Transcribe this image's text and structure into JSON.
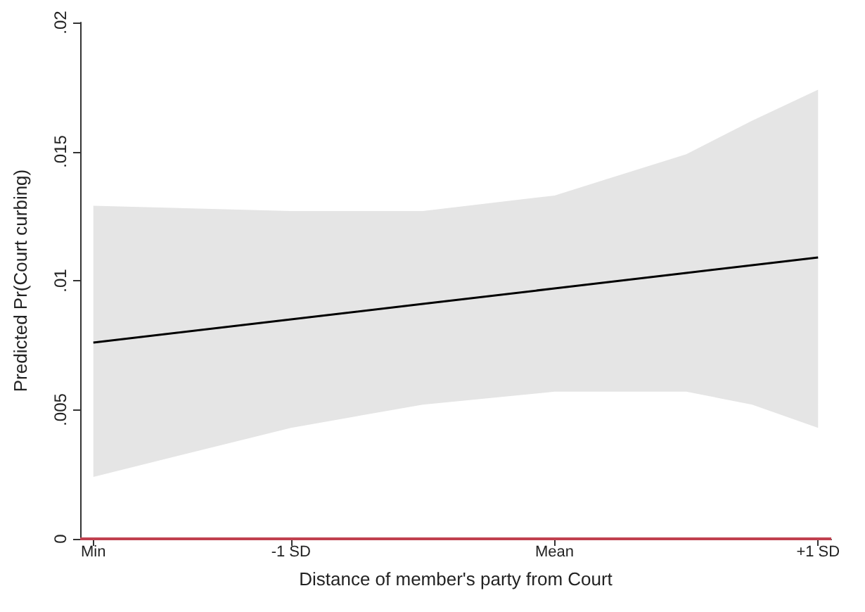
{
  "chart_data": {
    "type": "line",
    "xlabel": "Distance of member's party from Court",
    "ylabel": "Predicted Pr(Court curbing)",
    "x": [
      -1.75,
      -1,
      -0.5,
      0,
      0.5,
      0.75,
      1
    ],
    "series": [
      {
        "color": "#000000",
        "values": [
          0.0076,
          0.0085,
          0.0091,
          0.0097,
          0.0103,
          0.0106,
          0.0109
        ],
        "lower": [
          0.0024,
          0.0043,
          0.0052,
          0.0057,
          0.0057,
          0.0052,
          0.0043
        ],
        "upper": [
          0.0129,
          0.0127,
          0.0127,
          0.0133,
          0.0149,
          0.0162,
          0.0174
        ]
      }
    ],
    "xlim": [
      -1.8,
      1.05
    ],
    "xticks": [
      {
        "value": -1.75,
        "label": "Min"
      },
      {
        "value": -1,
        "label": "-1 SD"
      },
      {
        "value": 0,
        "label": "Mean"
      },
      {
        "value": 1,
        "label": "+1 SD"
      }
    ],
    "ylim": [
      0,
      0.02
    ],
    "yticks": [
      {
        "value": 0,
        "label": "0"
      },
      {
        "value": 0.005,
        "label": ".005"
      },
      {
        "value": 0.01,
        "label": ".01"
      },
      {
        "value": 0.015,
        "label": ".015"
      },
      {
        "value": 0.02,
        "label": ".02"
      }
    ],
    "ref_lines": [
      {
        "axis": "y",
        "value": 0,
        "color": "#c0404f"
      }
    ],
    "grid": false,
    "marker": "none",
    "line_style": "solid"
  }
}
